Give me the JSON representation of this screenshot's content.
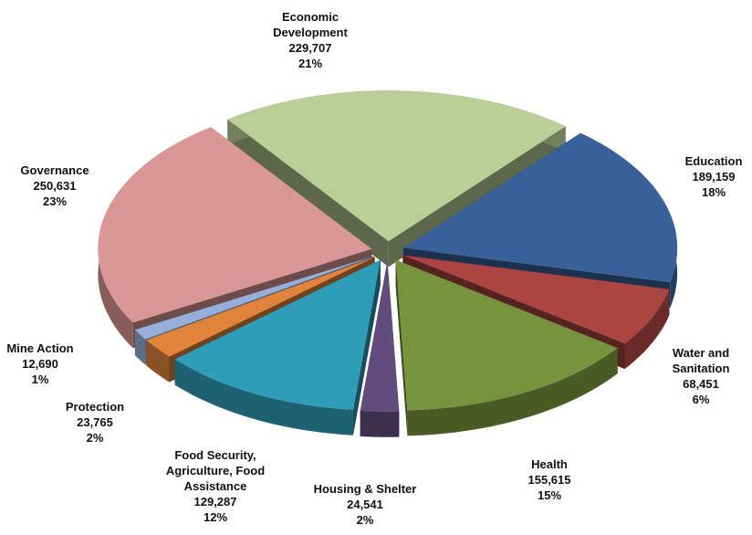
{
  "chart_data": {
    "type": "pie",
    "categories": [
      "Economic Development",
      "Education",
      "Water and Sanitation",
      "Health",
      "Housing & Shelter",
      "Food Security, Agriculture, Food Assistance",
      "Protection",
      "Mine Action",
      "Governance"
    ],
    "values": [
      229707,
      189159,
      68451,
      155615,
      24541,
      129287,
      23765,
      12690,
      250631
    ],
    "value_labels": [
      "229,707",
      "189,159",
      "68,451",
      "155,615",
      "24,541",
      "129,287",
      "23,765",
      "12,690",
      "250,631"
    ],
    "percents": [
      21,
      18,
      6,
      15,
      2,
      12,
      2,
      1,
      23
    ],
    "percent_labels": [
      "21%",
      "18%",
      "6%",
      "15%",
      "2%",
      "12%",
      "2%",
      "1%",
      "23%"
    ],
    "colors": [
      "#b9cf96",
      "#38619a",
      "#ab4542",
      "#77933c",
      "#624c7e",
      "#2f9cb8",
      "#e0843c",
      "#97afd8",
      "#da9795"
    ]
  }
}
